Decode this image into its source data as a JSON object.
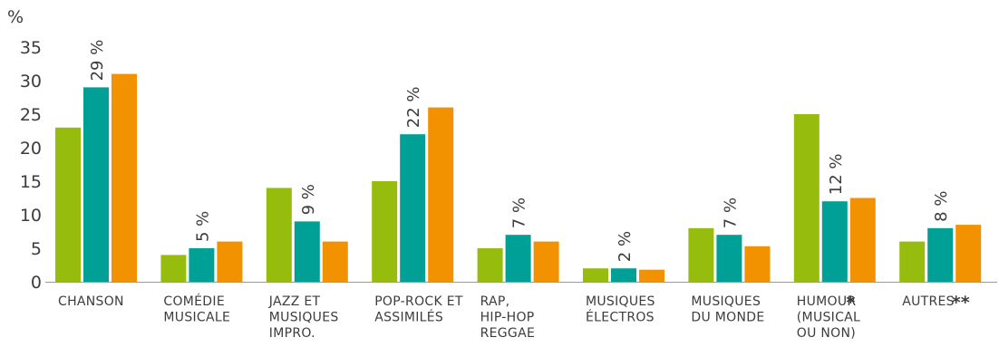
{
  "chart_data": {
    "type": "bar",
    "ylabel": "%",
    "ylim": [
      0,
      35
    ],
    "yticks": [
      "0",
      "5",
      "10",
      "15",
      "20",
      "25",
      "30",
      "35"
    ],
    "grid": false,
    "categories": [
      {
        "lines": [
          "CHANSON"
        ],
        "marker": ""
      },
      {
        "lines": [
          "COMÉDIE",
          "MUSICALE"
        ],
        "marker": ""
      },
      {
        "lines": [
          "JAZZ ET",
          "MUSIQUES",
          "IMPRO."
        ],
        "marker": ""
      },
      {
        "lines": [
          "POP-ROCK ET",
          "ASSIMILÉS"
        ],
        "marker": ""
      },
      {
        "lines": [
          "RAP,",
          "HIP-HOP",
          "REGGAE"
        ],
        "marker": ""
      },
      {
        "lines": [
          "MUSIQUES",
          "ÉLECTROS"
        ],
        "marker": ""
      },
      {
        "lines": [
          "MUSIQUES",
          "DU MONDE"
        ],
        "marker": ""
      },
      {
        "lines": [
          "HUMOUR",
          "(MUSICAL",
          "OU NON)"
        ],
        "marker": "*"
      },
      {
        "lines": [
          "AUTRES"
        ],
        "marker": "**"
      }
    ],
    "series": [
      {
        "color": "#96bd0d",
        "values": [
          23,
          4,
          14,
          15,
          5,
          2,
          8,
          25,
          6
        ]
      },
      {
        "color": "#00a096",
        "values": [
          29,
          5,
          9,
          22,
          7,
          2,
          7,
          12,
          8
        ],
        "data_labels": [
          "29 %",
          "5 %",
          "9 %",
          "22 %",
          "7 %",
          "2 %",
          "7 %",
          "12 %",
          "8 %"
        ]
      },
      {
        "color": "#f39200",
        "values": [
          31,
          6,
          6,
          26,
          6,
          1.8,
          5.3,
          12.5,
          8.5
        ]
      }
    ]
  }
}
